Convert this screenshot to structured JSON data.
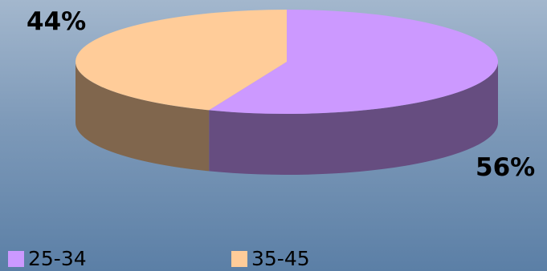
{
  "chart_data": {
    "type": "pie",
    "style": "3d",
    "slices": [
      {
        "label": "25-34",
        "value": 56,
        "display": "56%",
        "color": "#cc99ff",
        "side_color": "#664d80"
      },
      {
        "label": "35-45",
        "value": 44,
        "display": "44%",
        "color": "#ffcc99",
        "side_color": "#80664d"
      }
    ],
    "legend_position": "bottom"
  }
}
